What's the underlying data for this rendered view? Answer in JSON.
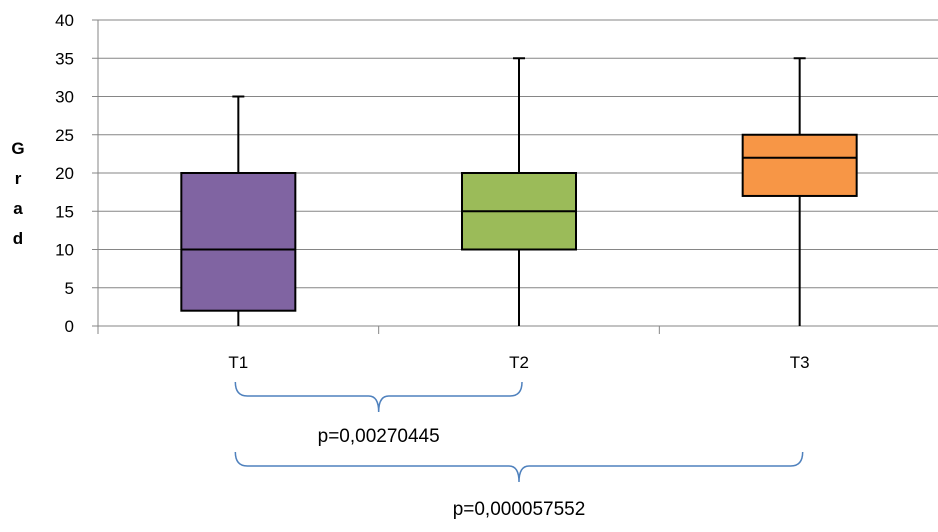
{
  "chart_data": {
    "type": "box",
    "ylabel_chars": [
      "G",
      "r",
      "a",
      "d"
    ],
    "ylim": [
      0,
      40
    ],
    "yticks": [
      0,
      5,
      10,
      15,
      20,
      25,
      30,
      35,
      40
    ],
    "grid": true,
    "categories": [
      "T1",
      "T2",
      "T3"
    ],
    "boxes": [
      {
        "category": "T1",
        "min": 0,
        "q1": 2,
        "median": 10,
        "q3": 20,
        "max": 30,
        "color": "#8064A2"
      },
      {
        "category": "T2",
        "min": 0,
        "q1": 10,
        "median": 15,
        "q3": 20,
        "max": 35,
        "color": "#9BBB59"
      },
      {
        "category": "T3",
        "min": 0,
        "q1": 17,
        "median": 22,
        "q3": 25,
        "max": 35,
        "color": "#F79646"
      }
    ],
    "annotations": [
      {
        "from": "T1",
        "to": "T2",
        "label": "p=0,00270445"
      },
      {
        "from": "T1",
        "to": "T3",
        "label": "p=0,000057552"
      }
    ],
    "colors": {
      "grid": "#868686",
      "bracket": "#4F81BD",
      "axis": "#868686"
    }
  }
}
